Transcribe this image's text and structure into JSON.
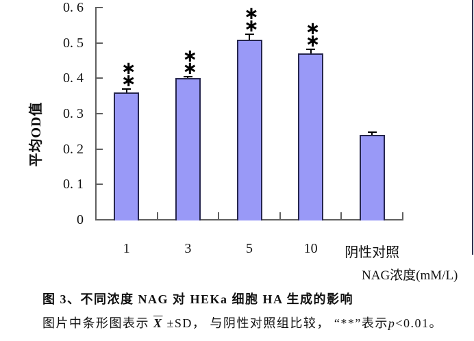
{
  "chart_data": {
    "type": "bar",
    "title": "",
    "categories": [
      "1",
      "3",
      "5",
      "10",
      "阴性对照"
    ],
    "values": [
      0.36,
      0.4,
      0.51,
      0.47,
      0.24
    ],
    "errors_sd": [
      0.01,
      0.005,
      0.015,
      0.012,
      0.008
    ],
    "significance": [
      "**",
      "**",
      "**",
      "**",
      ""
    ],
    "xlabel": "NAG浓度(mM/L)",
    "ylabel": "平均OD值",
    "ylim": [
      0,
      0.6
    ],
    "ytick_values": [
      0,
      0.1,
      0.2,
      0.3,
      0.4,
      0.5,
      0.6
    ],
    "ytick_labels": [
      "0",
      "0. 1",
      "0. 2",
      "0. 3",
      "0. 4",
      "0. 5",
      "0. 6"
    ],
    "grid": false,
    "legend": "none",
    "bar_fill": "#9999f7",
    "bar_border": "#26264d",
    "axis_color": "#5f5f5f"
  },
  "caption": {
    "line1": "图 3、不同浓度 NAG 对 HEKa 细胞 HA 生成的影响",
    "line2_part1": "图片中条形图表示 ",
    "line2_xbar": "X",
    "line2_part2": " ±SD， 与阴性对照组比较， “**”表示",
    "line2_p": "p",
    "line2_part3": "<0.01。"
  }
}
